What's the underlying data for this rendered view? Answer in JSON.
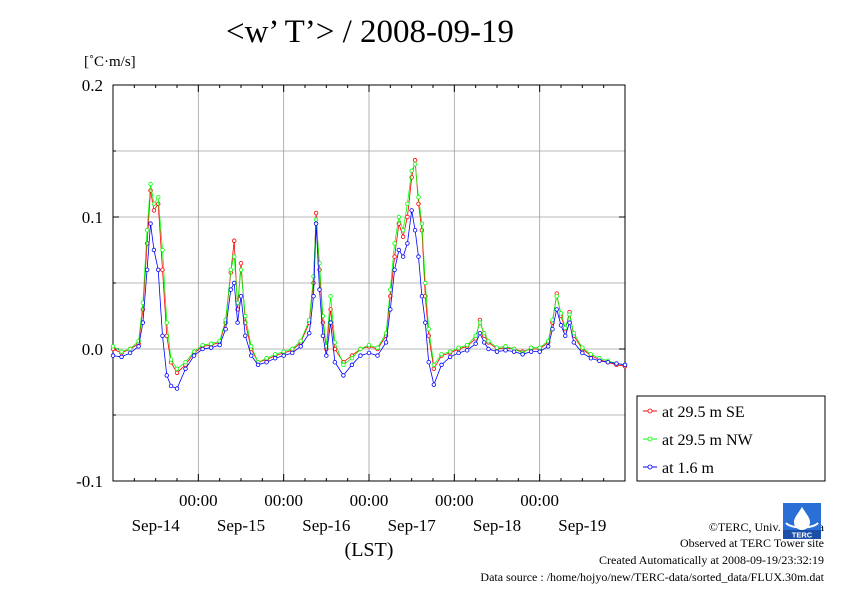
{
  "title": "<w’ T’> / 2008-09-19",
  "unit_label": "[˚C·m/s]",
  "xlabel": "(LST)",
  "credits": [
    "©TERC, Univ. Tsukuba",
    "Observed at TERC Tower site",
    "Created Automatically at 2008-09-19/23:32:19",
    "Data source : /home/hojyo/new/TERC-data/sorted_data/FLUX.30m.dat"
  ],
  "logo_text": "TERC",
  "colors": {
    "se": "#ff0000",
    "nw": "#00ff00",
    "low": "#0000ff",
    "grid": "#a0a0a0"
  },
  "chart_data": {
    "type": "line",
    "x_unit": "days since Sep-13 00:00 LST",
    "xlim": [
      0.0,
      6.0
    ],
    "ylim": [
      -0.1,
      0.2
    ],
    "ytick_labels": [
      "0.2",
      "0.1",
      "0.0",
      "-0.1"
    ],
    "yticks": [
      0.2,
      0.1,
      0.0,
      -0.1
    ],
    "x_tick_labels": [
      "00:00",
      "00:00",
      "00:00",
      "00:00",
      "00:00"
    ],
    "x_ticks": [
      1,
      2,
      3,
      4,
      5
    ],
    "day_labels": [
      "Sep-14",
      "Sep-15",
      "Sep-16",
      "Sep-17",
      "Sep-18",
      "Sep-19"
    ],
    "day_label_positions": [
      0.5,
      1.5,
      2.5,
      3.5,
      4.5,
      5.5
    ],
    "legend_position": "right",
    "series": [
      {
        "name": "at 29.5 m SE",
        "color": "#ff0000",
        "points": [
          [
            0.0,
            0.0
          ],
          [
            0.1,
            -0.003
          ],
          [
            0.2,
            0.0
          ],
          [
            0.3,
            0.004
          ],
          [
            0.35,
            0.03
          ],
          [
            0.4,
            0.08
          ],
          [
            0.44,
            0.12
          ],
          [
            0.48,
            0.105
          ],
          [
            0.53,
            0.11
          ],
          [
            0.58,
            0.06
          ],
          [
            0.63,
            0.01
          ],
          [
            0.68,
            -0.01
          ],
          [
            0.75,
            -0.018
          ],
          [
            0.85,
            -0.012
          ],
          [
            0.95,
            -0.003
          ],
          [
            1.05,
            0.002
          ],
          [
            1.15,
            0.003
          ],
          [
            1.25,
            0.005
          ],
          [
            1.32,
            0.02
          ],
          [
            1.38,
            0.058
          ],
          [
            1.42,
            0.082
          ],
          [
            1.46,
            0.03
          ],
          [
            1.5,
            0.065
          ],
          [
            1.55,
            0.02
          ],
          [
            1.62,
            0.0
          ],
          [
            1.7,
            -0.01
          ],
          [
            1.8,
            -0.008
          ],
          [
            1.9,
            -0.005
          ],
          [
            2.0,
            -0.003
          ],
          [
            2.1,
            -0.001
          ],
          [
            2.2,
            0.005
          ],
          [
            2.3,
            0.02
          ],
          [
            2.35,
            0.05
          ],
          [
            2.38,
            0.103
          ],
          [
            2.42,
            0.06
          ],
          [
            2.46,
            0.02
          ],
          [
            2.5,
            0.0
          ],
          [
            2.55,
            0.03
          ],
          [
            2.6,
            0.0
          ],
          [
            2.7,
            -0.01
          ],
          [
            2.8,
            -0.005
          ],
          [
            2.9,
            0.0
          ],
          [
            3.0,
            0.002
          ],
          [
            3.1,
            0.0
          ],
          [
            3.2,
            0.01
          ],
          [
            3.25,
            0.04
          ],
          [
            3.3,
            0.07
          ],
          [
            3.35,
            0.095
          ],
          [
            3.4,
            0.085
          ],
          [
            3.45,
            0.1
          ],
          [
            3.5,
            0.13
          ],
          [
            3.54,
            0.143
          ],
          [
            3.58,
            0.11
          ],
          [
            3.62,
            0.09
          ],
          [
            3.66,
            0.04
          ],
          [
            3.7,
            0.01
          ],
          [
            3.76,
            -0.015
          ],
          [
            3.85,
            -0.005
          ],
          [
            3.95,
            -0.003
          ],
          [
            4.05,
            0.0
          ],
          [
            4.15,
            0.002
          ],
          [
            4.25,
            0.008
          ],
          [
            4.3,
            0.022
          ],
          [
            4.35,
            0.01
          ],
          [
            4.4,
            0.005
          ],
          [
            4.5,
            0.0
          ],
          [
            4.6,
            0.001
          ],
          [
            4.7,
            0.0
          ],
          [
            4.8,
            -0.002
          ],
          [
            4.9,
            0.0
          ],
          [
            5.0,
            0.0
          ],
          [
            5.1,
            0.005
          ],
          [
            5.15,
            0.02
          ],
          [
            5.2,
            0.042
          ],
          [
            5.25,
            0.025
          ],
          [
            5.3,
            0.015
          ],
          [
            5.35,
            0.028
          ],
          [
            5.4,
            0.01
          ],
          [
            5.5,
            0.0
          ],
          [
            5.6,
            -0.005
          ],
          [
            5.7,
            -0.008
          ],
          [
            5.8,
            -0.01
          ],
          [
            5.9,
            -0.012
          ],
          [
            6.0,
            -0.013
          ]
        ]
      },
      {
        "name": "at 29.5 m NW",
        "color": "#00ff00",
        "points": [
          [
            0.0,
            0.002
          ],
          [
            0.1,
            -0.002
          ],
          [
            0.2,
            0.0
          ],
          [
            0.3,
            0.006
          ],
          [
            0.35,
            0.035
          ],
          [
            0.4,
            0.09
          ],
          [
            0.44,
            0.125
          ],
          [
            0.48,
            0.11
          ],
          [
            0.53,
            0.115
          ],
          [
            0.58,
            0.075
          ],
          [
            0.63,
            0.02
          ],
          [
            0.68,
            -0.008
          ],
          [
            0.75,
            -0.015
          ],
          [
            0.85,
            -0.01
          ],
          [
            0.95,
            -0.002
          ],
          [
            1.05,
            0.003
          ],
          [
            1.15,
            0.004
          ],
          [
            1.25,
            0.006
          ],
          [
            1.32,
            0.022
          ],
          [
            1.38,
            0.06
          ],
          [
            1.42,
            0.07
          ],
          [
            1.46,
            0.035
          ],
          [
            1.5,
            0.06
          ],
          [
            1.55,
            0.025
          ],
          [
            1.62,
            0.002
          ],
          [
            1.7,
            -0.01
          ],
          [
            1.8,
            -0.007
          ],
          [
            1.9,
            -0.004
          ],
          [
            2.0,
            -0.002
          ],
          [
            2.1,
            0.0
          ],
          [
            2.2,
            0.006
          ],
          [
            2.3,
            0.022
          ],
          [
            2.35,
            0.055
          ],
          [
            2.38,
            0.098
          ],
          [
            2.42,
            0.065
          ],
          [
            2.46,
            0.025
          ],
          [
            2.5,
            0.002
          ],
          [
            2.55,
            0.04
          ],
          [
            2.6,
            0.005
          ],
          [
            2.7,
            -0.012
          ],
          [
            2.8,
            -0.007
          ],
          [
            2.9,
            0.0
          ],
          [
            3.0,
            0.003
          ],
          [
            3.1,
            0.001
          ],
          [
            3.2,
            0.012
          ],
          [
            3.25,
            0.045
          ],
          [
            3.3,
            0.08
          ],
          [
            3.35,
            0.1
          ],
          [
            3.4,
            0.09
          ],
          [
            3.45,
            0.11
          ],
          [
            3.5,
            0.135
          ],
          [
            3.54,
            0.14
          ],
          [
            3.58,
            0.115
          ],
          [
            3.62,
            0.095
          ],
          [
            3.66,
            0.05
          ],
          [
            3.7,
            0.015
          ],
          [
            3.76,
            -0.012
          ],
          [
            3.85,
            -0.004
          ],
          [
            3.95,
            -0.002
          ],
          [
            4.05,
            0.001
          ],
          [
            4.15,
            0.003
          ],
          [
            4.25,
            0.01
          ],
          [
            4.3,
            0.02
          ],
          [
            4.35,
            0.012
          ],
          [
            4.4,
            0.006
          ],
          [
            4.5,
            0.001
          ],
          [
            4.6,
            0.002
          ],
          [
            4.7,
            0.0
          ],
          [
            4.8,
            -0.003
          ],
          [
            4.9,
            0.001
          ],
          [
            5.0,
            0.001
          ],
          [
            5.1,
            0.006
          ],
          [
            5.15,
            0.022
          ],
          [
            5.2,
            0.04
          ],
          [
            5.25,
            0.027
          ],
          [
            5.3,
            0.016
          ],
          [
            5.35,
            0.026
          ],
          [
            5.4,
            0.012
          ],
          [
            5.5,
            0.001
          ],
          [
            5.6,
            -0.004
          ],
          [
            5.7,
            -0.007
          ],
          [
            5.8,
            -0.009
          ],
          [
            5.9,
            -0.011
          ],
          [
            6.0,
            -0.012
          ]
        ]
      },
      {
        "name": "at 1.6 m",
        "color": "#0000ff",
        "points": [
          [
            0.0,
            -0.005
          ],
          [
            0.1,
            -0.006
          ],
          [
            0.2,
            -0.003
          ],
          [
            0.3,
            0.002
          ],
          [
            0.35,
            0.02
          ],
          [
            0.4,
            0.06
          ],
          [
            0.44,
            0.095
          ],
          [
            0.48,
            0.075
          ],
          [
            0.53,
            0.06
          ],
          [
            0.58,
            0.01
          ],
          [
            0.63,
            -0.02
          ],
          [
            0.68,
            -0.028
          ],
          [
            0.75,
            -0.03
          ],
          [
            0.85,
            -0.015
          ],
          [
            0.95,
            -0.005
          ],
          [
            1.05,
            0.0
          ],
          [
            1.15,
            0.001
          ],
          [
            1.25,
            0.003
          ],
          [
            1.32,
            0.015
          ],
          [
            1.38,
            0.045
          ],
          [
            1.42,
            0.05
          ],
          [
            1.46,
            0.02
          ],
          [
            1.5,
            0.04
          ],
          [
            1.55,
            0.01
          ],
          [
            1.62,
            -0.005
          ],
          [
            1.7,
            -0.012
          ],
          [
            1.8,
            -0.01
          ],
          [
            1.9,
            -0.007
          ],
          [
            2.0,
            -0.005
          ],
          [
            2.1,
            -0.003
          ],
          [
            2.2,
            0.002
          ],
          [
            2.3,
            0.012
          ],
          [
            2.35,
            0.04
          ],
          [
            2.38,
            0.095
          ],
          [
            2.42,
            0.045
          ],
          [
            2.46,
            0.01
          ],
          [
            2.5,
            -0.005
          ],
          [
            2.55,
            0.02
          ],
          [
            2.6,
            -0.01
          ],
          [
            2.7,
            -0.02
          ],
          [
            2.8,
            -0.012
          ],
          [
            2.9,
            -0.005
          ],
          [
            3.0,
            -0.003
          ],
          [
            3.1,
            -0.005
          ],
          [
            3.2,
            0.005
          ],
          [
            3.25,
            0.03
          ],
          [
            3.3,
            0.06
          ],
          [
            3.35,
            0.075
          ],
          [
            3.4,
            0.07
          ],
          [
            3.45,
            0.08
          ],
          [
            3.5,
            0.105
          ],
          [
            3.54,
            0.09
          ],
          [
            3.58,
            0.07
          ],
          [
            3.62,
            0.04
          ],
          [
            3.66,
            0.02
          ],
          [
            3.7,
            -0.01
          ],
          [
            3.76,
            -0.027
          ],
          [
            3.85,
            -0.012
          ],
          [
            3.95,
            -0.006
          ],
          [
            4.05,
            -0.003
          ],
          [
            4.15,
            -0.001
          ],
          [
            4.25,
            0.004
          ],
          [
            4.3,
            0.012
          ],
          [
            4.35,
            0.005
          ],
          [
            4.4,
            0.0
          ],
          [
            4.5,
            -0.002
          ],
          [
            4.6,
            -0.001
          ],
          [
            4.7,
            -0.002
          ],
          [
            4.8,
            -0.004
          ],
          [
            4.9,
            -0.002
          ],
          [
            5.0,
            -0.002
          ],
          [
            5.1,
            0.002
          ],
          [
            5.15,
            0.015
          ],
          [
            5.2,
            0.03
          ],
          [
            5.25,
            0.018
          ],
          [
            5.3,
            0.01
          ],
          [
            5.35,
            0.02
          ],
          [
            5.4,
            0.005
          ],
          [
            5.5,
            -0.003
          ],
          [
            5.6,
            -0.007
          ],
          [
            5.7,
            -0.009
          ],
          [
            5.8,
            -0.01
          ],
          [
            5.9,
            -0.011
          ],
          [
            6.0,
            -0.012
          ]
        ]
      }
    ]
  }
}
